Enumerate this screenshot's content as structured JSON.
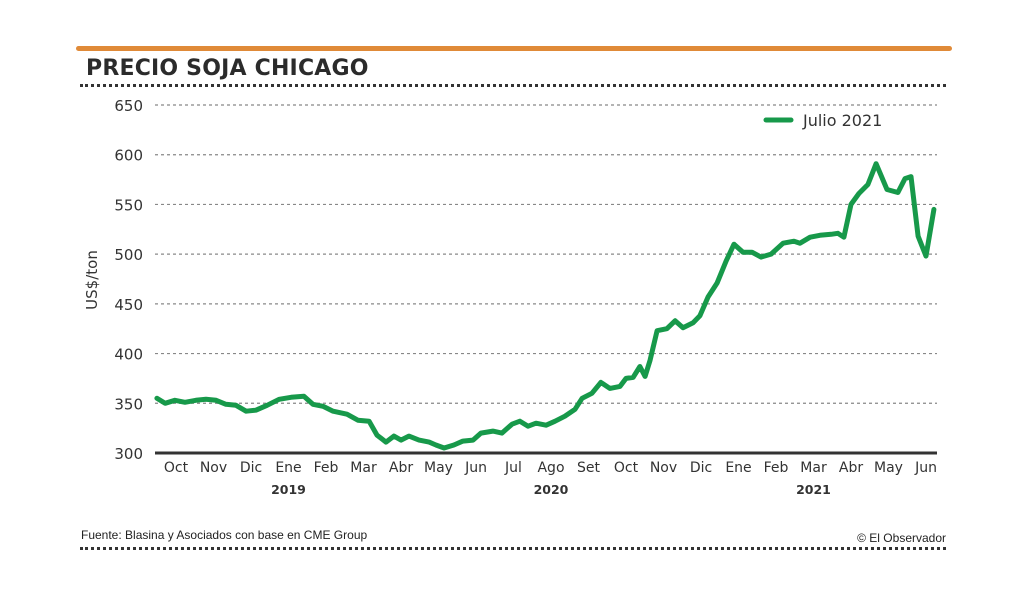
{
  "header": {
    "title": "PRECIO SOJA CHICAGO"
  },
  "footer": {
    "source": "Fuente: Blasina y Asociados con base en CME Group",
    "credit": "© El Observador"
  },
  "colors": {
    "accent_bar": "#e08a38",
    "series": "#17994a",
    "text": "#333333"
  },
  "chart_data": {
    "type": "line",
    "title": "PRECIO SOJA CHICAGO",
    "xlabel": "",
    "ylabel": "US$/ton",
    "ylim": [
      300,
      650
    ],
    "yticks": [
      300,
      350,
      400,
      450,
      500,
      550,
      600,
      650
    ],
    "grid": true,
    "legend_position": "top-right",
    "month_labels": [
      "Oct",
      "Nov",
      "Dic",
      "Ene",
      "Feb",
      "Mar",
      "Abr",
      "May",
      "Jun",
      "Jul",
      "Ago",
      "Set",
      "Oct",
      "Nov",
      "Dic",
      "Ene",
      "Feb",
      "Mar",
      "Abr",
      "May",
      "Jun"
    ],
    "year_labels": [
      {
        "label": "2019",
        "month_index": 3
      },
      {
        "label": "2020",
        "month_index": 10
      },
      {
        "label": "2021",
        "month_index": 17
      }
    ],
    "series": [
      {
        "name": "Julio 2021",
        "x_unit": "month index (0 = Oct 2019)",
        "x": [
          -0.51,
          -0.29,
          -0.03,
          0.24,
          0.53,
          0.8,
          1.07,
          1.33,
          1.6,
          1.87,
          2.13,
          2.43,
          2.75,
          3.07,
          3.41,
          3.65,
          3.92,
          4.19,
          4.56,
          4.85,
          5.15,
          5.36,
          5.6,
          5.81,
          6.0,
          6.21,
          6.48,
          6.75,
          6.93,
          7.15,
          7.41,
          7.65,
          7.92,
          8.13,
          8.45,
          8.69,
          8.96,
          9.17,
          9.39,
          9.6,
          9.87,
          10.11,
          10.37,
          10.64,
          10.83,
          11.09,
          11.33,
          11.57,
          11.84,
          12.0,
          12.19,
          12.37,
          12.51,
          12.64,
          12.83,
          13.09,
          13.31,
          13.52,
          13.79,
          13.97,
          14.19,
          14.43,
          14.67,
          14.88,
          15.12,
          15.36,
          15.6,
          15.87,
          16.19,
          16.48,
          16.64,
          16.91,
          17.17,
          17.47,
          17.65,
          17.81,
          18.0,
          18.21,
          18.45,
          18.67,
          18.96,
          19.25,
          19.44,
          19.6,
          19.79,
          20.0,
          20.21
        ],
        "values": [
          355,
          350,
          353,
          351,
          353,
          354,
          353,
          349,
          348,
          342,
          343,
          348,
          354,
          356,
          357,
          349,
          347,
          342,
          339,
          333,
          332,
          318,
          311,
          317,
          313,
          317,
          313,
          311,
          308,
          305,
          308,
          312,
          313,
          320,
          322,
          320,
          329,
          332,
          327,
          330,
          328,
          332,
          337,
          344,
          355,
          360,
          371,
          365,
          367,
          375,
          376,
          387,
          377,
          393,
          423,
          425,
          433,
          426,
          431,
          438,
          457,
          471,
          493,
          510,
          502,
          502,
          497,
          500,
          511,
          513,
          511,
          517,
          519,
          520,
          521,
          517,
          550,
          561,
          570,
          591,
          565,
          562,
          576,
          578,
          518,
          498,
          545
        ]
      }
    ]
  }
}
